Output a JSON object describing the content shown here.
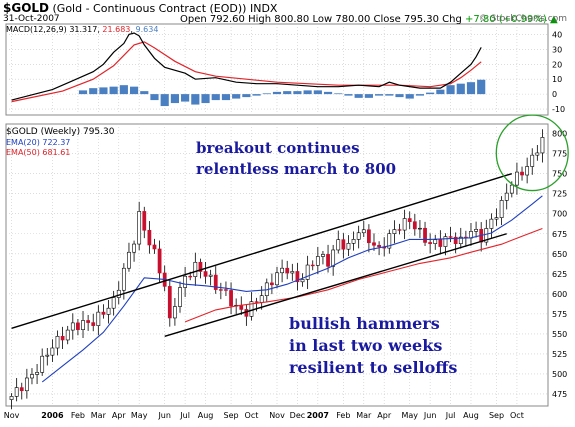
{
  "header": {
    "symbol": "$GOLD",
    "description": "(Gold - Continuous Contract (EOD))",
    "exchange": "INDX",
    "date": "31-Oct-2007",
    "open_label": "Open",
    "open": "792.60",
    "high_label": "High",
    "high": "800.80",
    "low_label": "Low",
    "low": "780.00",
    "close_label": "Close",
    "close": "795.30",
    "chg_label": "Chg",
    "chg": "+7.80 (+0.99%)",
    "up_arrow": "▲",
    "brand": "© StockCharts.com"
  },
  "macd_legend": {
    "name": "MACD(12,26,9)",
    "macd": "31.317",
    "signal": "21.683",
    "hist": "9.634"
  },
  "price_legend": {
    "symbol": "$GOLD (Weekly)",
    "close": "795.30",
    "ema20_label": "EMA(20)",
    "ema20_value": "722.37",
    "ema50_label": "EMA(50)",
    "ema50_value": "681.61"
  },
  "annotations": {
    "top_line1": "breakout continues",
    "top_line2": "relentless march to 800",
    "bottom_line1": "bullish hammers",
    "bottom_line2": "in last two weeks",
    "bottom_line3": "resilient to selloffs"
  },
  "colors": {
    "up": "#ffffff",
    "down": "#c8102e",
    "outline": "#000000",
    "ema20": "#1f3fbf",
    "ema50": "#e2242a",
    "macd_line": "#000000",
    "signal_line": "#e2242a",
    "histogram": "#4a7fc1",
    "annotation": "#1a1aa0",
    "highlight_circle": "#2aa02a",
    "grid": "#c8c8c8"
  },
  "chart_data": [
    {
      "type": "line",
      "title": "MACD(12,26,9)",
      "y_ticks": [
        -10,
        0,
        10,
        20,
        30,
        40
      ],
      "ylim": [
        -14,
        47
      ],
      "macd_points": [
        [
          0,
          -4
        ],
        [
          8,
          3
        ],
        [
          12,
          9
        ],
        [
          16,
          15
        ],
        [
          18,
          20
        ],
        [
          20,
          28
        ],
        [
          22,
          34
        ],
        [
          23,
          40
        ],
        [
          24,
          41
        ],
        [
          25,
          39
        ],
        [
          26,
          33
        ],
        [
          28,
          24
        ],
        [
          30,
          18
        ],
        [
          34,
          14
        ],
        [
          36,
          10
        ],
        [
          40,
          11
        ],
        [
          44,
          8
        ],
        [
          48,
          7
        ],
        [
          52,
          7
        ],
        [
          56,
          6
        ],
        [
          60,
          5
        ],
        [
          64,
          5
        ],
        [
          68,
          6
        ],
        [
          72,
          5
        ],
        [
          74,
          8
        ],
        [
          76,
          6
        ],
        [
          80,
          4
        ],
        [
          84,
          4
        ],
        [
          86,
          8
        ],
        [
          88,
          14
        ],
        [
          90,
          20
        ],
        [
          91,
          25
        ],
        [
          92,
          31.317
        ]
      ],
      "signal_points": [
        [
          0,
          -5
        ],
        [
          10,
          2
        ],
        [
          16,
          10
        ],
        [
          20,
          19
        ],
        [
          22,
          26
        ],
        [
          24,
          33
        ],
        [
          26,
          35
        ],
        [
          28,
          31
        ],
        [
          32,
          22
        ],
        [
          36,
          15
        ],
        [
          40,
          12
        ],
        [
          46,
          10
        ],
        [
          52,
          8
        ],
        [
          58,
          7
        ],
        [
          64,
          6
        ],
        [
          70,
          6
        ],
        [
          76,
          6
        ],
        [
          82,
          5
        ],
        [
          86,
          7
        ],
        [
          88,
          11
        ],
        [
          90,
          16
        ],
        [
          92,
          21.683
        ]
      ],
      "histogram": [
        [
          14,
          2.5
        ],
        [
          16,
          4
        ],
        [
          18,
          4.5
        ],
        [
          20,
          5
        ],
        [
          22,
          6
        ],
        [
          24,
          5
        ],
        [
          26,
          2
        ],
        [
          28,
          -4
        ],
        [
          30,
          -8
        ],
        [
          32,
          -6
        ],
        [
          34,
          -5
        ],
        [
          36,
          -7
        ],
        [
          38,
          -6
        ],
        [
          40,
          -4
        ],
        [
          42,
          -4
        ],
        [
          44,
          -3
        ],
        [
          46,
          -2
        ],
        [
          48,
          -1
        ],
        [
          50,
          0.5
        ],
        [
          52,
          1.5
        ],
        [
          54,
          2
        ],
        [
          56,
          2
        ],
        [
          58,
          2.5
        ],
        [
          60,
          2.5
        ],
        [
          62,
          1.5
        ],
        [
          64,
          0.5
        ],
        [
          66,
          -1
        ],
        [
          68,
          -2.5
        ],
        [
          70,
          -2.5
        ],
        [
          72,
          -1
        ],
        [
          74,
          -1
        ],
        [
          76,
          -2
        ],
        [
          78,
          -3
        ],
        [
          80,
          -1
        ],
        [
          82,
          1
        ],
        [
          84,
          3
        ],
        [
          86,
          6
        ],
        [
          88,
          7
        ],
        [
          90,
          8
        ],
        [
          92,
          9.634
        ]
      ]
    },
    {
      "type": "line",
      "title": "$GOLD (Weekly)",
      "x_ticks": [
        {
          "i": 0,
          "label": "Nov",
          "bold": false
        },
        {
          "i": 8,
          "label": "2006",
          "bold": true
        },
        {
          "i": 13,
          "label": "Feb",
          "bold": false
        },
        {
          "i": 17,
          "label": "Mar",
          "bold": false
        },
        {
          "i": 21,
          "label": "Apr",
          "bold": false
        },
        {
          "i": 25,
          "label": "May",
          "bold": false
        },
        {
          "i": 30,
          "label": "Jun",
          "bold": false
        },
        {
          "i": 34,
          "label": "Jul",
          "bold": false
        },
        {
          "i": 38,
          "label": "Aug",
          "bold": false
        },
        {
          "i": 43,
          "label": "Sep",
          "bold": false
        },
        {
          "i": 47,
          "label": "Oct",
          "bold": false
        },
        {
          "i": 52,
          "label": "Nov",
          "bold": false
        },
        {
          "i": 56,
          "label": "Dec",
          "bold": false
        },
        {
          "i": 60,
          "label": "2007",
          "bold": true
        },
        {
          "i": 65,
          "label": "Feb",
          "bold": false
        },
        {
          "i": 69,
          "label": "Mar",
          "bold": false
        },
        {
          "i": 73,
          "label": "Apr",
          "bold": false
        },
        {
          "i": 78,
          "label": "May",
          "bold": false
        },
        {
          "i": 82,
          "label": "Jun",
          "bold": false
        },
        {
          "i": 86,
          "label": "Jul",
          "bold": false
        },
        {
          "i": 90,
          "label": "Aug",
          "bold": false
        },
        {
          "i": 95,
          "label": "Sep",
          "bold": false
        },
        {
          "i": 99,
          "label": "Oct",
          "bold": false
        }
      ],
      "y_ticks": [
        475,
        500,
        525,
        550,
        575,
        600,
        625,
        650,
        675,
        700,
        725,
        750,
        775,
        800
      ],
      "ylim": [
        460,
        812
      ],
      "x_count": 105,
      "close_points": [
        [
          0,
          472
        ],
        [
          4,
          498
        ],
        [
          8,
          535
        ],
        [
          12,
          560
        ],
        [
          16,
          565
        ],
        [
          20,
          590
        ],
        [
          22,
          630
        ],
        [
          24,
          668
        ],
        [
          25,
          698
        ],
        [
          26,
          680
        ],
        [
          28,
          650
        ],
        [
          30,
          610
        ],
        [
          31,
          565
        ],
        [
          32,
          590
        ],
        [
          34,
          620
        ],
        [
          36,
          634
        ],
        [
          38,
          625
        ],
        [
          40,
          610
        ],
        [
          42,
          600
        ],
        [
          44,
          582
        ],
        [
          46,
          577
        ],
        [
          48,
          592
        ],
        [
          50,
          608
        ],
        [
          52,
          625
        ],
        [
          54,
          632
        ],
        [
          56,
          615
        ],
        [
          58,
          630
        ],
        [
          60,
          648
        ],
        [
          62,
          640
        ],
        [
          64,
          665
        ],
        [
          66,
          658
        ],
        [
          68,
          680
        ],
        [
          70,
          668
        ],
        [
          72,
          654
        ],
        [
          74,
          672
        ],
        [
          76,
          685
        ],
        [
          78,
          692
        ],
        [
          80,
          676
        ],
        [
          82,
          662
        ],
        [
          84,
          665
        ],
        [
          86,
          670
        ],
        [
          88,
          665
        ],
        [
          90,
          680
        ],
        [
          92,
          670
        ],
        [
          94,
          690
        ],
        [
          96,
          712
        ],
        [
          98,
          740
        ],
        [
          100,
          752
        ],
        [
          102,
          768
        ],
        [
          104,
          795.3
        ]
      ],
      "ema20_points": [
        [
          6,
          490
        ],
        [
          10,
          510
        ],
        [
          14,
          530
        ],
        [
          18,
          552
        ],
        [
          22,
          585
        ],
        [
          26,
          620
        ],
        [
          30,
          618
        ],
        [
          34,
          612
        ],
        [
          38,
          610
        ],
        [
          42,
          607
        ],
        [
          46,
          603
        ],
        [
          50,
          605
        ],
        [
          54,
          612
        ],
        [
          58,
          622
        ],
        [
          62,
          632
        ],
        [
          66,
          645
        ],
        [
          70,
          655
        ],
        [
          74,
          660
        ],
        [
          78,
          668
        ],
        [
          82,
          668
        ],
        [
          86,
          669
        ],
        [
          90,
          670
        ],
        [
          94,
          676
        ],
        [
          98,
          692
        ],
        [
          102,
          712
        ],
        [
          104,
          722.37
        ]
      ],
      "ema50_points": [
        [
          34,
          565
        ],
        [
          40,
          580
        ],
        [
          44,
          585
        ],
        [
          50,
          590
        ],
        [
          56,
          596
        ],
        [
          62,
          605
        ],
        [
          68,
          618
        ],
        [
          74,
          628
        ],
        [
          80,
          638
        ],
        [
          86,
          645
        ],
        [
          90,
          652
        ],
        [
          96,
          662
        ],
        [
          100,
          672
        ],
        [
          104,
          681.61
        ]
      ],
      "trendlines": [
        {
          "name": "upper-channel-line",
          "from": [
            0,
            557
          ],
          "to": [
            98,
            750
          ]
        },
        {
          "name": "lower-channel-line",
          "from": [
            30,
            547
          ],
          "to": [
            97,
            675
          ]
        }
      ],
      "highlight_circle": {
        "center": [
          102,
          776
        ],
        "radius_weeks": 3.2
      }
    }
  ]
}
